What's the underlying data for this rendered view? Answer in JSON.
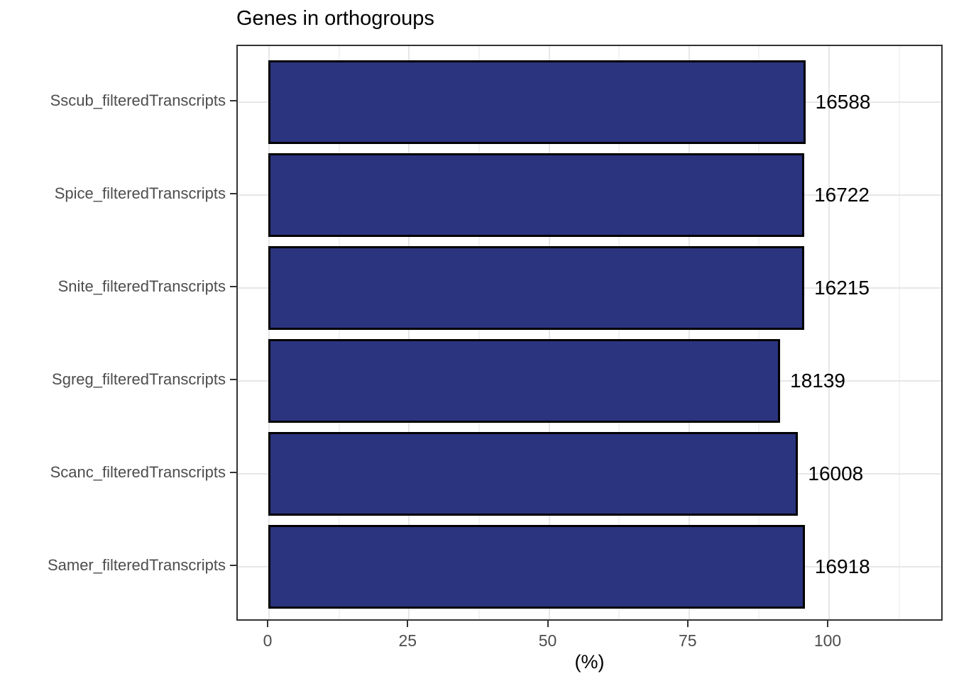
{
  "chart": {
    "title": "Genes in orthogroups",
    "x_axis_title": "(%)"
  },
  "chart_data": {
    "type": "bar",
    "orientation": "horizontal",
    "title": "Genes in orthogroups",
    "xlabel": "(%)",
    "ylabel": "",
    "categories": [
      "Sscub_filteredTranscripts",
      "Spice_filteredTranscripts",
      "Snite_filteredTranscripts",
      "Sgreg_filteredTranscripts",
      "Scanc_filteredTranscripts",
      "Samer_filteredTranscripts"
    ],
    "percent_values": [
      95.9,
      95.7,
      95.7,
      91.4,
      94.6,
      95.8
    ],
    "bar_labels": [
      "16588",
      "16722",
      "16215",
      "18139",
      "16008",
      "16918"
    ],
    "x_ticks": [
      0,
      25,
      50,
      75,
      100
    ],
    "x_minor_ticks": [
      12.5,
      37.5,
      62.5,
      87.5,
      112.5
    ],
    "xlim": [
      -5.6,
      120.6
    ],
    "grid": true,
    "legend_position": "none",
    "colors": {
      "bar_fill": "#2b347e",
      "bar_stroke": "#000000",
      "grid_major": "#e7e7e7",
      "grid_minor": "#f3f3f3",
      "panel_border": "#333333",
      "axis_tick": "#333333",
      "tick_label": "#4d4d4d",
      "text": "#000000",
      "background": "#ffffff"
    }
  }
}
